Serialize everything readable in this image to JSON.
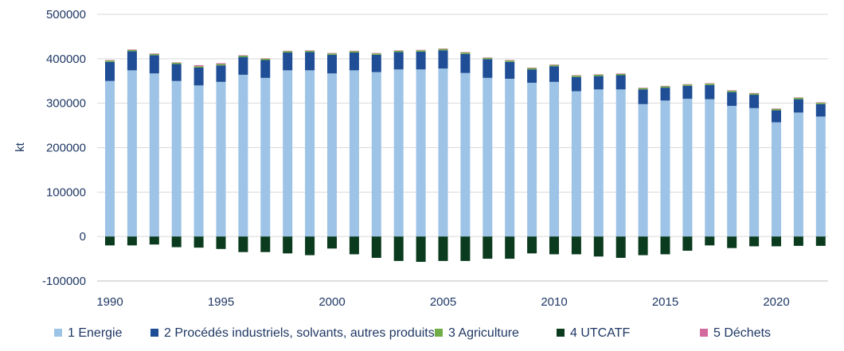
{
  "chart_data": {
    "type": "bar",
    "stacked": true,
    "title": "",
    "xlabel": "",
    "ylabel": "kt",
    "ylim": [
      -100000,
      500000
    ],
    "yticks": [
      500000,
      400000,
      300000,
      200000,
      100000,
      0,
      -100000
    ],
    "ytick_labels": [
      "500000",
      "400000",
      "300000",
      "200000",
      "100000",
      "0",
      "-100000"
    ],
    "xtick_labels": [
      "1990",
      "1995",
      "2000",
      "2005",
      "2010",
      "2015",
      "2020"
    ],
    "xtick_years": [
      1990,
      1995,
      2000,
      2005,
      2010,
      2015,
      2020
    ],
    "grid": true,
    "legend_position": "bottom",
    "categories": [
      1990,
      1991,
      1992,
      1993,
      1994,
      1995,
      1996,
      1997,
      1998,
      1999,
      2000,
      2001,
      2002,
      2003,
      2004,
      2005,
      2006,
      2007,
      2008,
      2009,
      2010,
      2011,
      2012,
      2013,
      2014,
      2015,
      2016,
      2017,
      2018,
      2019,
      2020,
      2021,
      2022
    ],
    "series": [
      {
        "name": "1 Energie",
        "color": "#9dc3e6",
        "values": [
          350000,
          374000,
          367000,
          350000,
          340000,
          348000,
          364000,
          357000,
          374000,
          374000,
          367000,
          374000,
          370000,
          376000,
          376000,
          378000,
          368000,
          357000,
          355000,
          346000,
          348000,
          327000,
          331000,
          331000,
          298000,
          306000,
          310000,
          309000,
          294000,
          289000,
          257000,
          279000,
          270000
        ]
      },
      {
        "name": "2  Procédés industriels, solvants, autres produits",
        "color": "#1f4e96",
        "values": [
          43000,
          43000,
          41000,
          38000,
          40000,
          37000,
          40000,
          40000,
          40000,
          41000,
          42000,
          40000,
          39000,
          39000,
          40000,
          41000,
          43000,
          42000,
          38000,
          30000,
          35000,
          32000,
          30000,
          32000,
          33000,
          29000,
          29000,
          32000,
          31000,
          30000,
          27000,
          30000,
          28000
        ]
      },
      {
        "name": "3  Agriculture",
        "color": "#70ad47",
        "values": [
          3000,
          3000,
          3000,
          3000,
          3000,
          3000,
          3000,
          3000,
          3000,
          3000,
          3000,
          3000,
          3000,
          3000,
          3000,
          3000,
          3000,
          3000,
          3000,
          3000,
          3000,
          3000,
          3000,
          3000,
          3000,
          3000,
          3000,
          3000,
          3000,
          3000,
          3000,
          3000,
          3000
        ]
      },
      {
        "name": "4  UTCATF",
        "color": "#0b3b1e",
        "values": [
          -20000,
          -20000,
          -18000,
          -24000,
          -25000,
          -28000,
          -35000,
          -35000,
          -38000,
          -42000,
          -27000,
          -40000,
          -48000,
          -55000,
          -57000,
          -55000,
          -55000,
          -50000,
          -50000,
          -38000,
          -40000,
          -40000,
          -45000,
          -48000,
          -42000,
          -40000,
          -32000,
          -20000,
          -26000,
          -22000,
          -22000,
          -21000,
          -21000
        ]
      },
      {
        "name": "5  Déchets",
        "color": "#d36b9e",
        "values": [
          1000,
          1000,
          1000,
          1000,
          2500,
          2000,
          1000,
          1000,
          1000,
          1000,
          1000,
          1000,
          1000,
          1000,
          1000,
          1000,
          1000,
          1000,
          1000,
          1000,
          1000,
          1000,
          1000,
          1000,
          1000,
          1000,
          1000,
          1000,
          1000,
          1000,
          1000,
          1000,
          1000
        ]
      }
    ]
  }
}
